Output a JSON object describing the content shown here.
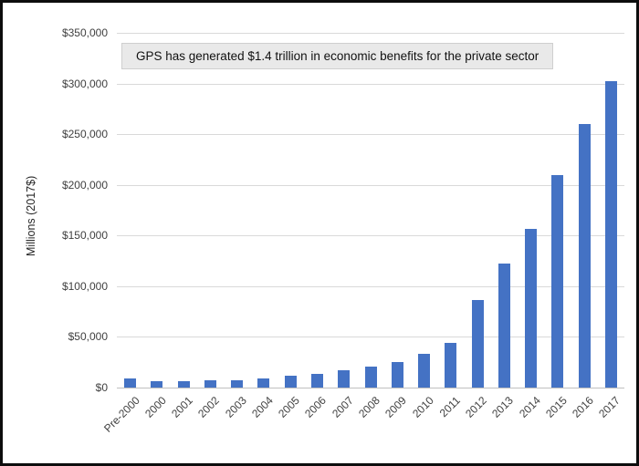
{
  "chart_data": {
    "type": "bar",
    "title": "GPS has generated $1.4 trillion in economic benefits for the private sector",
    "ylabel": "Millions (2017$)",
    "xlabel": "",
    "categories": [
      "Pre-2000",
      "2000",
      "2001",
      "2002",
      "2003",
      "2004",
      "2005",
      "2006",
      "2007",
      "2008",
      "2009",
      "2010",
      "2011",
      "2012",
      "2013",
      "2014",
      "2015",
      "2016",
      "2017"
    ],
    "values": [
      9000,
      6000,
      6500,
      7000,
      7500,
      9000,
      11500,
      13500,
      17000,
      21000,
      25000,
      33000,
      44000,
      86000,
      122000,
      157000,
      210000,
      260000,
      302000
    ],
    "ylim": [
      0,
      350000
    ],
    "ytick_step": 50000,
    "ytick_labels": [
      "$0",
      "$50,000",
      "$100,000",
      "$150,000",
      "$200,000",
      "$250,000",
      "$300,000",
      "$350,000"
    ],
    "grid": true,
    "legend": "none",
    "bar_color": "#4472C4",
    "gridline_color": "#d9d9d9",
    "title_box_bg": "#e9e9e9",
    "frame_border_color": "#0d0d0d"
  }
}
